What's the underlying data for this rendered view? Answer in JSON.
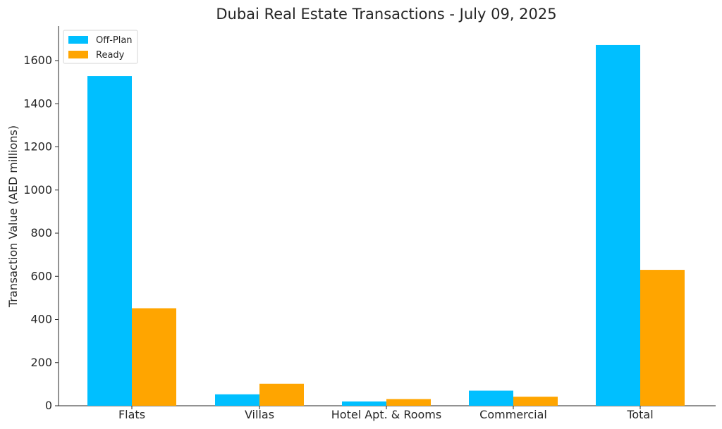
{
  "chart_data": {
    "type": "bar",
    "title": "Dubai Real Estate Transactions - July 09, 2025",
    "xlabel": "",
    "ylabel": "Transaction Value (AED millions)",
    "categories": [
      "Flats",
      "Villas",
      "Hotel Apt. & Rooms",
      "Commercial",
      "Total"
    ],
    "series": [
      {
        "name": "Off-Plan",
        "color": "#00bfff",
        "values": [
          1528,
          53,
          20,
          70,
          1672
        ]
      },
      {
        "name": "Ready",
        "color": "#ffa500",
        "values": [
          452,
          102,
          31,
          42,
          630
        ]
      }
    ],
    "ylim": [
      0,
      1760
    ],
    "yticks": [
      0,
      200,
      400,
      600,
      800,
      1000,
      1200,
      1400,
      1600
    ],
    "grid": false,
    "legend_position": "top-left"
  }
}
